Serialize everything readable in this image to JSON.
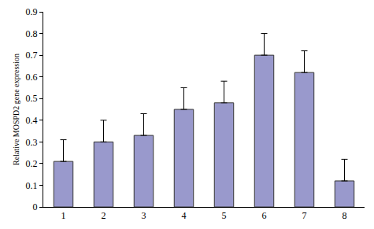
{
  "chart_data": {
    "type": "bar",
    "categories": [
      "1",
      "2",
      "3",
      "4",
      "5",
      "6",
      "7",
      "8"
    ],
    "values": [
      0.21,
      0.3,
      0.33,
      0.45,
      0.48,
      0.7,
      0.62,
      0.12
    ],
    "errors": [
      0.1,
      0.1,
      0.1,
      0.1,
      0.1,
      0.1,
      0.1,
      0.1
    ],
    "color": "#9999cc",
    "y_label": "Relative MOSPD2 gene expression",
    "ylim": [
      0,
      0.9
    ],
    "yticks": [
      0,
      0.1,
      0.2,
      0.3,
      0.4,
      0.5,
      0.6,
      0.7,
      0.8,
      0.9
    ],
    "grid": false
  }
}
